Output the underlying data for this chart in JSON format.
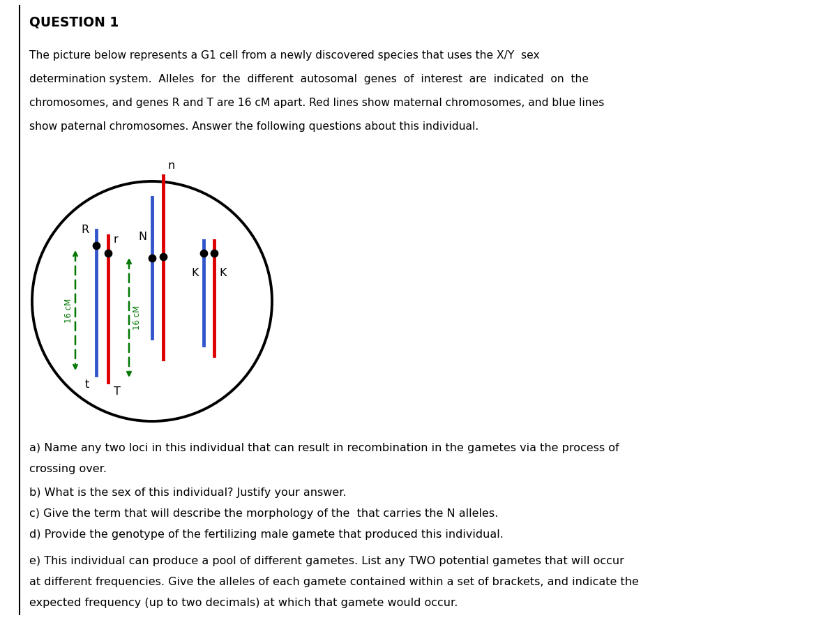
{
  "title": "QUESTION 1",
  "bg_color": "#ffffff",
  "text_color": "#000000",
  "red_color": "#dd0000",
  "blue_color": "#3355cc",
  "green_color": "#007700",
  "intro_lines": [
    "The picture below represents a G1 cell from a newly discovered species that uses the X/Y  sex",
    "determination system.  Alleles  for  the  different  autosomal  genes  of  interest  are  indicated  on  the",
    "chromosomes, and genes R and T are 16 cM apart. Red lines show maternal chromosomes, and blue lines",
    "show paternal chromosomes. Answer the following questions about this individual."
  ],
  "qa_line1": "a) Name any two loci in this individual that can result in recombination in the gametes via the process of",
  "qa_line2": "crossing over.",
  "qb": "b) What is the sex of this individual? Justify your answer.",
  "qc": "c) Give the term that will describe the morphology of the  that carries the N alleles.",
  "qd": "d) Provide the genotype of the fertilizing male gamete that produced this individual.",
  "qe1": "e) This individual can produce a pool of different gametes. List any TWO potential gametes that will occur",
  "qe2": "at different frequencies. Give the alleles of each gamete contained within a set of brackets, and indicate the",
  "qe3": "expected frequency (up to two decimals) at which that gamete would occur."
}
